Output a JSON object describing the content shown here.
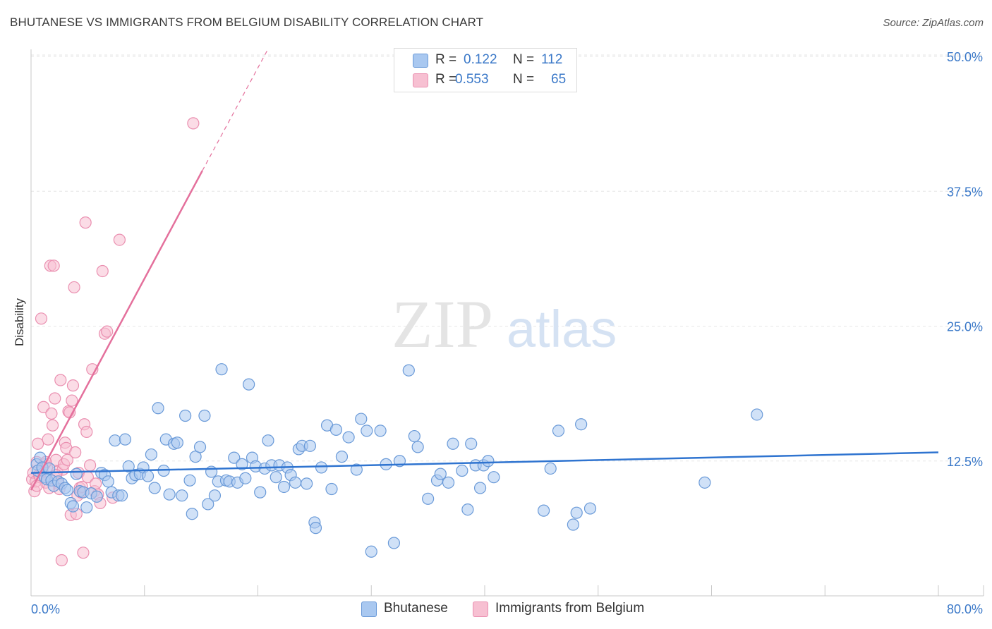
{
  "header": {
    "title": "BHUTANESE VS IMMIGRANTS FROM BELGIUM DISABILITY CORRELATION CHART",
    "source": "Source: ZipAtlas.com"
  },
  "watermark": {
    "part1": "ZIP",
    "part2": "atlas"
  },
  "legend": {
    "series": [
      {
        "r_label": "R =",
        "r_value": "0.122",
        "n_label": "N =",
        "n_value": "112"
      },
      {
        "r_label": "R =",
        "r_value": "0.553",
        "n_label": "N =",
        "n_value": "65"
      }
    ]
  },
  "bottom_legend": {
    "blue_label": "Bhutanese",
    "pink_label": "Immigrants from Belgium"
  },
  "colors": {
    "blue_fill": "#a9c8f0",
    "blue_stroke": "#6a9ad8",
    "blue_line": "#2f74d0",
    "pink_fill": "#f7c0d2",
    "pink_stroke": "#ea8fb0",
    "pink_line": "#e4709c",
    "axis_label": "#3a78c8",
    "grid": "#e6e6e6"
  },
  "chart_data": {
    "type": "scatter",
    "title": "BHUTANESE VS IMMIGRANTS FROM BELGIUM DISABILITY CORRELATION CHART",
    "xlabel": "",
    "ylabel": "Disability",
    "xlim": [
      0,
      80
    ],
    "ylim": [
      0,
      50
    ],
    "x_tick_labels": [
      {
        "value": 0,
        "label": "0.0%"
      },
      {
        "value": 80,
        "label": "80.0%"
      }
    ],
    "y_tick_labels": [
      {
        "value": 12.5,
        "label": "12.5%"
      },
      {
        "value": 25.0,
        "label": "25.0%"
      },
      {
        "value": 37.5,
        "label": "37.5%"
      },
      {
        "value": 50.0,
        "label": "50.0%"
      }
    ],
    "series": [
      {
        "name": "Bhutanese",
        "r": 0.122,
        "n": 112,
        "trend": {
          "x0": 0,
          "y0": 11.4,
          "x1": 80,
          "y1": 13.3
        },
        "points": [
          [
            0.5,
            12.2
          ],
          [
            0.6,
            11.6
          ],
          [
            0.8,
            12.8
          ],
          [
            1.0,
            11.9
          ],
          [
            1.2,
            11.0
          ],
          [
            1.4,
            10.8
          ],
          [
            1.6,
            11.8
          ],
          [
            1.8,
            10.7
          ],
          [
            2.0,
            10.2
          ],
          [
            2.4,
            10.6
          ],
          [
            2.7,
            10.4
          ],
          [
            3.0,
            10.0
          ],
          [
            3.2,
            9.8
          ],
          [
            3.5,
            8.6
          ],
          [
            3.7,
            8.3
          ],
          [
            4.0,
            11.3
          ],
          [
            4.3,
            9.7
          ],
          [
            4.6,
            9.6
          ],
          [
            4.9,
            8.2
          ],
          [
            5.3,
            9.5
          ],
          [
            5.8,
            9.2
          ],
          [
            6.2,
            11.4
          ],
          [
            6.5,
            11.2
          ],
          [
            6.8,
            10.6
          ],
          [
            7.1,
            9.6
          ],
          [
            7.4,
            14.4
          ],
          [
            7.7,
            9.3
          ],
          [
            8.0,
            9.3
          ],
          [
            8.3,
            14.5
          ],
          [
            8.6,
            12.0
          ],
          [
            8.9,
            10.9
          ],
          [
            9.2,
            11.2
          ],
          [
            9.6,
            11.3
          ],
          [
            9.9,
            11.9
          ],
          [
            10.3,
            11.1
          ],
          [
            10.6,
            13.1
          ],
          [
            10.9,
            10.0
          ],
          [
            11.2,
            17.4
          ],
          [
            11.7,
            11.6
          ],
          [
            11.9,
            14.5
          ],
          [
            12.2,
            9.4
          ],
          [
            12.6,
            14.1
          ],
          [
            12.9,
            14.2
          ],
          [
            13.3,
            9.3
          ],
          [
            13.6,
            16.7
          ],
          [
            14.0,
            10.7
          ],
          [
            14.2,
            7.6
          ],
          [
            14.5,
            12.9
          ],
          [
            14.9,
            13.8
          ],
          [
            15.3,
            16.7
          ],
          [
            15.6,
            8.5
          ],
          [
            15.9,
            11.5
          ],
          [
            16.2,
            9.3
          ],
          [
            16.5,
            10.6
          ],
          [
            16.8,
            21.0
          ],
          [
            17.2,
            10.7
          ],
          [
            17.5,
            10.6
          ],
          [
            17.9,
            12.8
          ],
          [
            18.2,
            10.5
          ],
          [
            18.6,
            12.2
          ],
          [
            18.9,
            10.9
          ],
          [
            19.2,
            19.6
          ],
          [
            19.5,
            12.8
          ],
          [
            19.8,
            12.0
          ],
          [
            20.2,
            9.6
          ],
          [
            20.6,
            11.8
          ],
          [
            20.9,
            14.4
          ],
          [
            21.2,
            12.1
          ],
          [
            21.6,
            11.0
          ],
          [
            21.9,
            12.1
          ],
          [
            22.3,
            10.1
          ],
          [
            22.6,
            11.9
          ],
          [
            22.9,
            11.2
          ],
          [
            23.3,
            10.5
          ],
          [
            23.6,
            13.6
          ],
          [
            23.9,
            13.9
          ],
          [
            24.3,
            10.4
          ],
          [
            24.6,
            13.9
          ],
          [
            25.0,
            6.8
          ],
          [
            25.1,
            6.3
          ],
          [
            25.6,
            11.9
          ],
          [
            26.1,
            15.8
          ],
          [
            26.5,
            9.9
          ],
          [
            26.9,
            15.4
          ],
          [
            27.4,
            12.9
          ],
          [
            28.0,
            14.7
          ],
          [
            28.7,
            11.7
          ],
          [
            29.1,
            16.4
          ],
          [
            29.6,
            15.3
          ],
          [
            30.0,
            4.1
          ],
          [
            30.8,
            15.3
          ],
          [
            31.3,
            12.2
          ],
          [
            32.0,
            4.9
          ],
          [
            32.5,
            12.5
          ],
          [
            33.3,
            20.9
          ],
          [
            33.8,
            14.8
          ],
          [
            34.1,
            13.8
          ],
          [
            35.0,
            9.0
          ],
          [
            35.8,
            10.7
          ],
          [
            36.1,
            11.3
          ],
          [
            36.8,
            10.5
          ],
          [
            37.2,
            14.1
          ],
          [
            38.0,
            11.6
          ],
          [
            38.5,
            8.0
          ],
          [
            38.8,
            14.1
          ],
          [
            39.2,
            12.1
          ],
          [
            39.6,
            10.0
          ],
          [
            39.9,
            12.1
          ],
          [
            40.3,
            12.5
          ],
          [
            40.8,
            11.0
          ],
          [
            45.2,
            7.9
          ],
          [
            45.8,
            11.8
          ],
          [
            47.8,
            6.6
          ],
          [
            48.1,
            7.7
          ],
          [
            48.5,
            15.9
          ],
          [
            46.5,
            15.3
          ],
          [
            49.3,
            8.1
          ],
          [
            59.4,
            10.5
          ],
          [
            64.0,
            16.8
          ]
        ]
      },
      {
        "name": "Immigrants from Belgium",
        "r": 0.553,
        "n": 65,
        "trend": {
          "x0": 0,
          "y0": 9.8,
          "x1": 15.1,
          "y1": 39.4,
          "dash_to": {
            "x": 20.8,
            "y": 50.5
          }
        },
        "points": [
          [
            0.1,
            10.8
          ],
          [
            0.2,
            11.4
          ],
          [
            0.3,
            9.7
          ],
          [
            0.4,
            10.6
          ],
          [
            0.5,
            12.4
          ],
          [
            0.6,
            14.1
          ],
          [
            0.7,
            11.2
          ],
          [
            0.8,
            11.0
          ],
          [
            0.9,
            25.7
          ],
          [
            1.0,
            11.6
          ],
          [
            1.1,
            17.5
          ],
          [
            1.2,
            12.2
          ],
          [
            1.3,
            10.5
          ],
          [
            1.4,
            11.9
          ],
          [
            1.5,
            14.5
          ],
          [
            1.6,
            10.0
          ],
          [
            1.7,
            30.6
          ],
          [
            1.8,
            16.9
          ],
          [
            1.9,
            15.8
          ],
          [
            2.0,
            30.6
          ],
          [
            2.1,
            18.3
          ],
          [
            2.2,
            12.6
          ],
          [
            2.3,
            11.5
          ],
          [
            2.4,
            10.4
          ],
          [
            2.5,
            9.9
          ],
          [
            2.6,
            20.0
          ],
          [
            2.7,
            3.3
          ],
          [
            2.8,
            11.7
          ],
          [
            2.9,
            12.2
          ],
          [
            3.0,
            14.2
          ],
          [
            3.1,
            13.7
          ],
          [
            3.2,
            12.6
          ],
          [
            3.3,
            17.1
          ],
          [
            3.4,
            17.0
          ],
          [
            3.5,
            7.5
          ],
          [
            3.6,
            18.1
          ],
          [
            3.7,
            19.5
          ],
          [
            3.8,
            28.6
          ],
          [
            3.9,
            13.3
          ],
          [
            4.0,
            7.6
          ],
          [
            4.1,
            9.3
          ],
          [
            4.2,
            11.4
          ],
          [
            4.3,
            10.0
          ],
          [
            4.4,
            9.6
          ],
          [
            4.5,
            10.1
          ],
          [
            4.6,
            4.0
          ],
          [
            4.7,
            15.9
          ],
          [
            4.8,
            34.6
          ],
          [
            4.9,
            15.2
          ],
          [
            5.0,
            11.0
          ],
          [
            5.2,
            12.1
          ],
          [
            5.4,
            21.0
          ],
          [
            5.6,
            9.7
          ],
          [
            5.7,
            10.4
          ],
          [
            5.9,
            9.4
          ],
          [
            6.1,
            8.6
          ],
          [
            6.3,
            30.1
          ],
          [
            6.5,
            24.3
          ],
          [
            6.7,
            24.5
          ],
          [
            7.2,
            9.1
          ],
          [
            7.8,
            33.0
          ],
          [
            14.3,
            43.8
          ],
          [
            0.5,
            10.2
          ],
          [
            1.3,
            12.4
          ],
          [
            2.2,
            11.2
          ]
        ]
      }
    ]
  }
}
